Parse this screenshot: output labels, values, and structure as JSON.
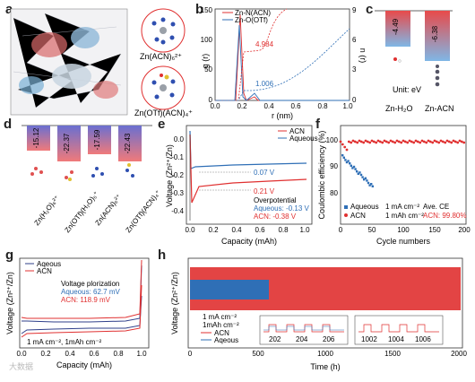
{
  "panels": {
    "a": {
      "letter": "a",
      "label1": "Zn(ACN)₆²⁺",
      "label2": "Zn(OTf)(ACN)₄⁺"
    },
    "b": {
      "letter": "b",
      "ylabel_left": "g (r)",
      "ylabel_right": "n (r)",
      "xlabel": "r (nm)",
      "legend": [
        "Zn-N(ACN)",
        "Zn-O(OTf)"
      ],
      "annot_red": "4.984",
      "annot_blue": "1.006",
      "xticks": [
        "0.0",
        "0.2",
        "0.4",
        "0.6",
        "0.8",
        "1.0"
      ],
      "yticks_left": [
        "0",
        "50",
        "100",
        "150"
      ],
      "yticks_right": [
        "0",
        "3",
        "6",
        "9"
      ]
    },
    "c": {
      "letter": "c",
      "values": [
        "-4.49",
        "-6.38"
      ],
      "unit": "Unit: eV",
      "categories": [
        "Zn-H₂O",
        "Zn-ACN"
      ]
    },
    "d": {
      "letter": "d",
      "values": [
        "-15.12",
        "-22.37",
        "-17.59",
        "-22.43"
      ],
      "categories": [
        "Zn(H₂O)₆²⁺",
        "Zn(OTf)(H₂O)₅⁺",
        "Zn(ACN)₆²⁺",
        "Zn(OTf)(ACN)₄⁺"
      ]
    },
    "e": {
      "letter": "e",
      "ylabel": "Voltage (Zn²⁺/Zn)",
      "xlabel": "Capacity (mAh)",
      "legend": [
        "ACN",
        "Aqueous"
      ],
      "annot1": "0.07 V",
      "annot2": "0.21 V",
      "over_title": "Overpotential",
      "over_aq": "Aqueous: -0.13 V",
      "over_acn": "ACN: -0.38 V",
      "xticks": [
        "0.0",
        "0.2",
        "0.4",
        "0.6",
        "0.8",
        "1.0"
      ],
      "yticks": [
        "-0.4",
        "-0.3",
        "-0.2",
        "-0.1",
        "0.0"
      ]
    },
    "f": {
      "letter": "f",
      "ylabel": "Coulombic efficiency (%)",
      "xlabel": "Cycle numbers",
      "legend": [
        "Aqueous",
        "ACN"
      ],
      "cond1": "1 mA cm⁻²",
      "cond2": "1 mAh cm⁻²",
      "ave_title": "Ave. CE",
      "ave_val": "ACN: 99.80%",
      "xticks": [
        "0",
        "50",
        "100",
        "150",
        "200"
      ],
      "yticks": [
        "80",
        "90",
        "100"
      ]
    },
    "g": {
      "letter": "g",
      "ylabel": "Voltage (Zn²⁺/Zn)",
      "xlabel": "Capacity (mAh)",
      "legend": [
        "Aqeous",
        "ACN"
      ],
      "vp_title": "Voltage plorization",
      "vp_aq": "Aqueous: 62.7 mV",
      "vp_acn": "ACN: 118.9 mV",
      "cond": "1 mA cm⁻², 1mAh cm⁻²",
      "xticks": [
        "0.0",
        "0.2",
        "0.4",
        "0.6",
        "0.8",
        "1.0"
      ]
    },
    "h": {
      "letter": "h",
      "ylabel": "Voltage (Zn²⁺/Zn)",
      "xlabel": "Time (h)",
      "cond1": "1 mA cm⁻²",
      "cond2": "1mAh cm⁻²",
      "legend": [
        "ACN",
        "Aqeous"
      ],
      "xticks": [
        "0",
        "500",
        "1000",
        "1500",
        "2000"
      ],
      "inset1_ticks": [
        "202",
        "204",
        "206"
      ],
      "inset2_ticks": [
        "1002",
        "1004",
        "1006"
      ]
    }
  },
  "watermark": "大数据",
  "colors": {
    "red": "#e03030",
    "blue": "#2f6fb6",
    "navy": "#1f2f7a"
  },
  "chart_data": [
    {
      "type": "bar",
      "categories": [
        "Zn-H₂O",
        "Zn-ACN"
      ],
      "values": [
        -4.49,
        -6.38
      ]
    },
    {
      "type": "bar",
      "categories": [
        "Zn(H₂O)₆²⁺",
        "Zn(OTf)(H₂O)₅⁺",
        "Zn(ACN)₆²⁺",
        "Zn(OTf)(ACN)₄⁺"
      ],
      "values": [
        -15.12,
        -22.37,
        -17.59,
        -22.43
      ]
    }
  ]
}
